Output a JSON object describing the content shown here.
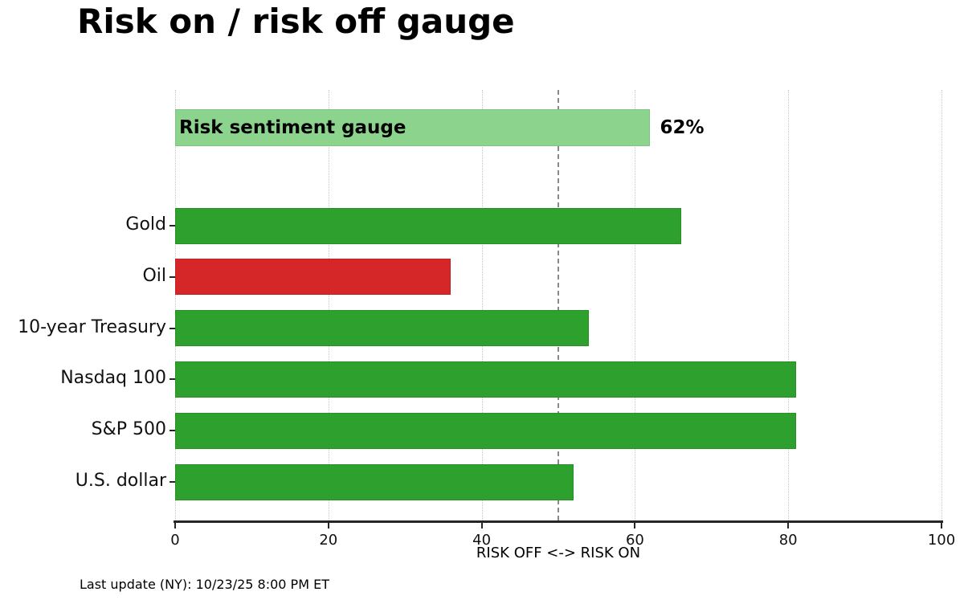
{
  "title": "Risk on / risk off gauge",
  "footer": {
    "last_update": "Last update (NY): 10/23/25 8:00 PM ET"
  },
  "chart_data": {
    "type": "bar",
    "orientation": "horizontal",
    "title": "Risk on / risk off gauge",
    "xlabel": "RISK OFF <-> RISK ON",
    "xlim": [
      0,
      100
    ],
    "xticks": [
      0,
      20,
      40,
      60,
      80,
      100
    ],
    "grid": {
      "vertical_dotted_at_ticks": true,
      "color": "#c8c8c8"
    },
    "reference_line": {
      "x": 50,
      "style": "dashed",
      "color": "#8a8a8a"
    },
    "gauge": {
      "label": "Risk sentiment gauge",
      "value": 62,
      "value_label": "62%",
      "color": "#8cd48e"
    },
    "categories": [
      "Gold",
      "Oil",
      "10-year Treasury",
      "Nasdaq 100",
      "S&P 500",
      "U.S. dollar"
    ],
    "values": [
      66,
      36,
      54,
      81,
      81,
      52
    ],
    "bar_colors": [
      "#2da02d",
      "#d62728",
      "#2da02d",
      "#2da02d",
      "#2da02d",
      "#2da02d"
    ],
    "colors": {
      "risk_on_green": "#2da02d",
      "risk_off_red": "#d62728",
      "gauge_light_green": "#8cd48e",
      "axis": "#262626"
    }
  }
}
